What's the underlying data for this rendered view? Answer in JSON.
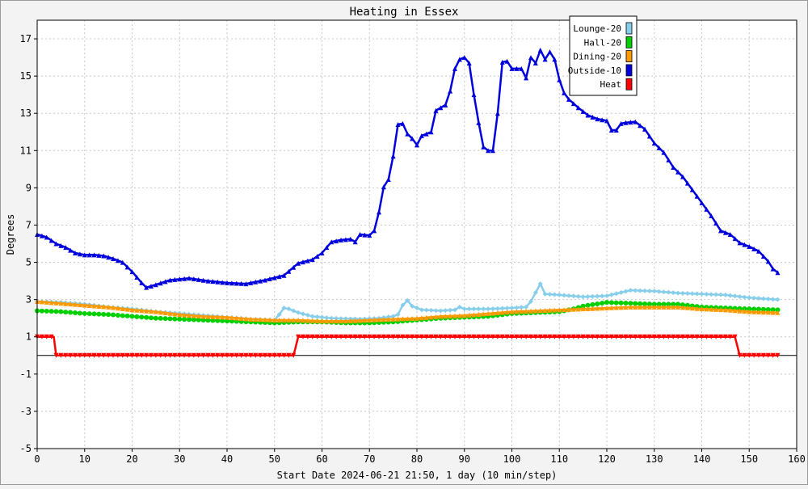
{
  "chart_data": {
    "type": "line",
    "title": "Heating in Essex",
    "xlabel": "Start Date 2024-06-21 21:50, 1 day (10 min/step)",
    "ylabel": "Degrees",
    "xlim": [
      0,
      160
    ],
    "ylim": [
      -5,
      18
    ],
    "xticks": [
      0,
      10,
      20,
      30,
      40,
      50,
      60,
      70,
      80,
      90,
      100,
      110,
      120,
      130,
      140,
      150,
      160
    ],
    "yticks": [
      -5,
      -3,
      -1,
      1,
      3,
      5,
      7,
      9,
      11,
      13,
      15,
      17
    ],
    "grid": true,
    "legend_position": "top-right",
    "series": [
      {
        "name": "Lounge-20",
        "color": "#87ceeb",
        "marker": "diamond",
        "points": [
          [
            0,
            2.9
          ],
          [
            5,
            2.85
          ],
          [
            10,
            2.75
          ],
          [
            15,
            2.6
          ],
          [
            20,
            2.5
          ],
          [
            25,
            2.35
          ],
          [
            30,
            2.25
          ],
          [
            35,
            2.15
          ],
          [
            40,
            2.05
          ],
          [
            45,
            1.95
          ],
          [
            50,
            1.9
          ],
          [
            51,
            2.2
          ],
          [
            52,
            2.55
          ],
          [
            53,
            2.5
          ],
          [
            55,
            2.3
          ],
          [
            58,
            2.1
          ],
          [
            62,
            2.0
          ],
          [
            68,
            1.95
          ],
          [
            72,
            2.0
          ],
          [
            75,
            2.1
          ],
          [
            76,
            2.2
          ],
          [
            77,
            2.7
          ],
          [
            78,
            2.95
          ],
          [
            79,
            2.65
          ],
          [
            81,
            2.45
          ],
          [
            85,
            2.4
          ],
          [
            88,
            2.45
          ],
          [
            89,
            2.6
          ],
          [
            90,
            2.5
          ],
          [
            95,
            2.5
          ],
          [
            100,
            2.55
          ],
          [
            103,
            2.6
          ],
          [
            104,
            2.9
          ],
          [
            106,
            3.85
          ],
          [
            107,
            3.3
          ],
          [
            110,
            3.25
          ],
          [
            115,
            3.15
          ],
          [
            120,
            3.2
          ],
          [
            125,
            3.5
          ],
          [
            130,
            3.45
          ],
          [
            135,
            3.35
          ],
          [
            140,
            3.3
          ],
          [
            145,
            3.25
          ],
          [
            150,
            3.1
          ],
          [
            156,
            3.0
          ]
        ]
      },
      {
        "name": "Hall-20",
        "color": "#00d000",
        "marker": "circle",
        "points": [
          [
            0,
            2.4
          ],
          [
            5,
            2.35
          ],
          [
            10,
            2.25
          ],
          [
            15,
            2.2
          ],
          [
            20,
            2.1
          ],
          [
            25,
            2.0
          ],
          [
            30,
            1.95
          ],
          [
            35,
            1.9
          ],
          [
            40,
            1.85
          ],
          [
            45,
            1.8
          ],
          [
            50,
            1.75
          ],
          [
            55,
            1.8
          ],
          [
            60,
            1.8
          ],
          [
            65,
            1.75
          ],
          [
            70,
            1.75
          ],
          [
            75,
            1.8
          ],
          [
            80,
            1.9
          ],
          [
            85,
            2.0
          ],
          [
            90,
            2.05
          ],
          [
            95,
            2.1
          ],
          [
            100,
            2.25
          ],
          [
            105,
            2.3
          ],
          [
            110,
            2.35
          ],
          [
            113,
            2.5
          ],
          [
            115,
            2.65
          ],
          [
            120,
            2.85
          ],
          [
            125,
            2.8
          ],
          [
            130,
            2.75
          ],
          [
            135,
            2.75
          ],
          [
            140,
            2.6
          ],
          [
            145,
            2.55
          ],
          [
            150,
            2.5
          ],
          [
            156,
            2.45
          ]
        ]
      },
      {
        "name": "Dining-20",
        "color": "#ff9900",
        "marker": "triangle",
        "points": [
          [
            0,
            2.9
          ],
          [
            5,
            2.8
          ],
          [
            10,
            2.7
          ],
          [
            15,
            2.6
          ],
          [
            20,
            2.45
          ],
          [
            25,
            2.35
          ],
          [
            30,
            2.2
          ],
          [
            35,
            2.1
          ],
          [
            40,
            2.05
          ],
          [
            45,
            1.95
          ],
          [
            50,
            1.9
          ],
          [
            55,
            1.9
          ],
          [
            60,
            1.85
          ],
          [
            65,
            1.85
          ],
          [
            70,
            1.9
          ],
          [
            75,
            1.95
          ],
          [
            80,
            2.0
          ],
          [
            85,
            2.1
          ],
          [
            90,
            2.15
          ],
          [
            95,
            2.25
          ],
          [
            100,
            2.35
          ],
          [
            105,
            2.4
          ],
          [
            110,
            2.45
          ],
          [
            115,
            2.5
          ],
          [
            120,
            2.55
          ],
          [
            125,
            2.6
          ],
          [
            130,
            2.6
          ],
          [
            135,
            2.6
          ],
          [
            140,
            2.5
          ],
          [
            145,
            2.45
          ],
          [
            150,
            2.35
          ],
          [
            156,
            2.3
          ]
        ]
      },
      {
        "name": "Outside-10",
        "color": "#0000dd",
        "marker": "triangle",
        "points": [
          [
            0,
            6.5
          ],
          [
            2,
            6.35
          ],
          [
            4,
            6.0
          ],
          [
            6,
            5.8
          ],
          [
            8,
            5.5
          ],
          [
            10,
            5.4
          ],
          [
            12,
            5.4
          ],
          [
            14,
            5.35
          ],
          [
            16,
            5.2
          ],
          [
            18,
            5.0
          ],
          [
            20,
            4.5
          ],
          [
            22,
            3.9
          ],
          [
            23,
            3.65
          ],
          [
            25,
            3.8
          ],
          [
            28,
            4.05
          ],
          [
            32,
            4.15
          ],
          [
            36,
            4.0
          ],
          [
            40,
            3.9
          ],
          [
            44,
            3.85
          ],
          [
            48,
            4.05
          ],
          [
            52,
            4.3
          ],
          [
            55,
            4.95
          ],
          [
            58,
            5.15
          ],
          [
            60,
            5.5
          ],
          [
            62,
            6.1
          ],
          [
            64,
            6.2
          ],
          [
            66,
            6.25
          ],
          [
            67,
            6.1
          ],
          [
            68,
            6.5
          ],
          [
            70,
            6.45
          ],
          [
            71,
            6.7
          ],
          [
            72,
            7.7
          ],
          [
            73,
            9.05
          ],
          [
            74,
            9.45
          ],
          [
            75,
            10.7
          ],
          [
            76,
            12.4
          ],
          [
            77,
            12.45
          ],
          [
            78,
            11.9
          ],
          [
            79,
            11.65
          ],
          [
            80,
            11.3
          ],
          [
            81,
            11.8
          ],
          [
            83,
            12.0
          ],
          [
            84,
            13.15
          ],
          [
            86,
            13.45
          ],
          [
            87,
            14.2
          ],
          [
            88,
            15.4
          ],
          [
            89,
            15.9
          ],
          [
            90,
            16.0
          ],
          [
            91,
            15.7
          ],
          [
            92,
            14.0
          ],
          [
            93,
            12.5
          ],
          [
            94,
            11.2
          ],
          [
            95,
            11.0
          ],
          [
            96,
            11.0
          ],
          [
            97,
            13.0
          ],
          [
            98,
            15.75
          ],
          [
            99,
            15.8
          ],
          [
            100,
            15.4
          ],
          [
            102,
            15.4
          ],
          [
            103,
            14.9
          ],
          [
            104,
            16.0
          ],
          [
            105,
            15.7
          ],
          [
            106,
            16.4
          ],
          [
            107,
            15.9
          ],
          [
            108,
            16.3
          ],
          [
            109,
            15.9
          ],
          [
            110,
            14.8
          ],
          [
            111,
            14.1
          ],
          [
            112,
            13.75
          ],
          [
            114,
            13.3
          ],
          [
            116,
            12.9
          ],
          [
            118,
            12.7
          ],
          [
            120,
            12.6
          ],
          [
            121,
            12.1
          ],
          [
            122,
            12.1
          ],
          [
            123,
            12.45
          ],
          [
            124,
            12.5
          ],
          [
            126,
            12.55
          ],
          [
            128,
            12.15
          ],
          [
            130,
            11.4
          ],
          [
            132,
            10.9
          ],
          [
            134,
            10.1
          ],
          [
            136,
            9.6
          ],
          [
            138,
            8.9
          ],
          [
            140,
            8.2
          ],
          [
            142,
            7.5
          ],
          [
            144,
            6.7
          ],
          [
            146,
            6.5
          ],
          [
            148,
            6.05
          ],
          [
            150,
            5.85
          ],
          [
            152,
            5.6
          ],
          [
            154,
            5.05
          ],
          [
            155,
            4.65
          ],
          [
            156,
            4.45
          ]
        ]
      },
      {
        "name": "Heat",
        "color": "#ff0000",
        "marker": "triangle-down",
        "points": [
          [
            0,
            1.0
          ],
          [
            3.5,
            1.0
          ],
          [
            4,
            0.0
          ],
          [
            54,
            0.0
          ],
          [
            55,
            1.0
          ],
          [
            147,
            1.0
          ],
          [
            148,
            0.0
          ],
          [
            156,
            0.0
          ]
        ]
      }
    ]
  }
}
